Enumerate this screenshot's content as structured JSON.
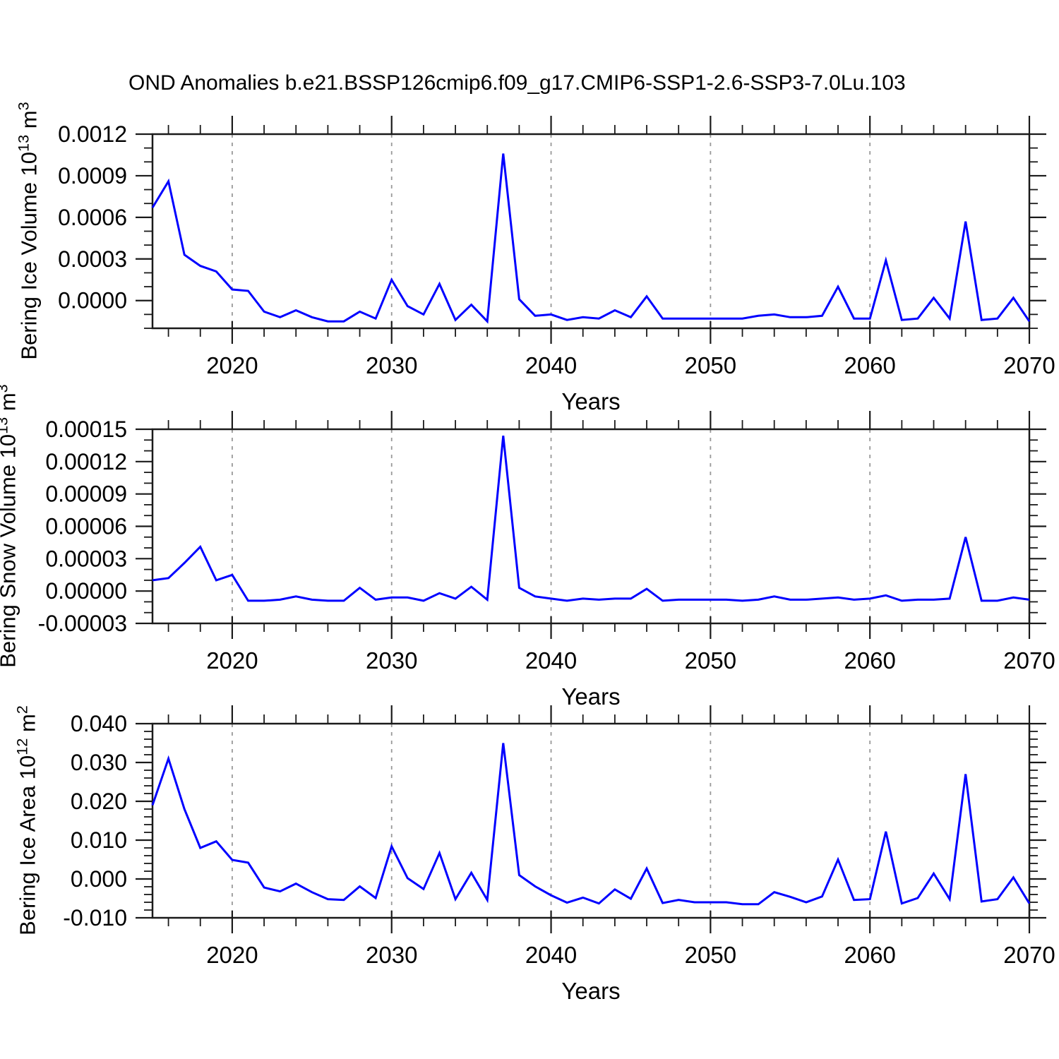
{
  "title": "OND Anomalies b.e21.BSSP126cmip6.f09_g17.CMIP6-SSP1-2.6-SSP3-7.0Lu.103",
  "xlabel": "Years",
  "accent_color": "#0000ff",
  "grid_color": "#999999",
  "axis_color": "#1a1a1a",
  "chart_data": [
    {
      "type": "line",
      "name": "bering-ice-volume",
      "ylabel": {
        "text": "Bering Ice Volume 10",
        "exp": "13",
        "unit": "m",
        "unit_exp": "3",
        "clipped": false
      },
      "xlabel": "Years",
      "xlim": [
        2015,
        2070
      ],
      "xtick_values": [
        2020,
        2030,
        2040,
        2050,
        2060,
        2070
      ],
      "xtick_labels": [
        "2020",
        "2030",
        "2040",
        "2050",
        "2060",
        "2070"
      ],
      "xminor_step": 2,
      "ylim": [
        -0.0002,
        0.0012
      ],
      "ytick_values": [
        0.0012,
        0.0009,
        0.0006,
        0.0003,
        0.0
      ],
      "ytick_labels": [
        "0.0012",
        "0.0009",
        "0.0006",
        "0.0003",
        "0.0000"
      ],
      "yminor_step": 0.0001,
      "grid": true,
      "x": [
        2015,
        2016,
        2017,
        2018,
        2019,
        2020,
        2021,
        2022,
        2023,
        2024,
        2025,
        2026,
        2027,
        2028,
        2029,
        2030,
        2031,
        2032,
        2033,
        2034,
        2035,
        2036,
        2037,
        2038,
        2039,
        2040,
        2041,
        2042,
        2043,
        2044,
        2045,
        2046,
        2047,
        2048,
        2049,
        2050,
        2051,
        2052,
        2053,
        2054,
        2055,
        2056,
        2057,
        2058,
        2059,
        2060,
        2061,
        2062,
        2063,
        2064,
        2065,
        2066,
        2067,
        2068,
        2069,
        2070
      ],
      "values": [
        0.00067,
        0.00086,
        0.00033,
        0.00025,
        0.00021,
        8e-05,
        7e-05,
        -8e-05,
        -0.00012,
        -7e-05,
        -0.00012,
        -0.00015,
        -0.00015,
        -8e-05,
        -0.00013,
        0.00015,
        -4e-05,
        -0.0001,
        0.00012,
        -0.00014,
        -3e-05,
        -0.00015,
        0.00106,
        1e-05,
        -0.00011,
        -0.0001,
        -0.00014,
        -0.00012,
        -0.00013,
        -7e-05,
        -0.00012,
        3e-05,
        -0.00013,
        -0.00013,
        -0.00013,
        -0.00013,
        -0.00013,
        -0.00013,
        -0.00011,
        -0.0001,
        -0.00012,
        -0.00012,
        -0.00011,
        0.0001,
        -0.00013,
        -0.00013,
        0.00029,
        -0.00014,
        -0.00013,
        2e-05,
        -0.00013,
        0.00057,
        -0.00014,
        -0.00013,
        2e-05,
        -0.00015
      ]
    },
    {
      "type": "line",
      "name": "bering-snow-volume",
      "ylabel": {
        "text": "Bering Snow Volume 10",
        "exp": "13",
        "unit": "m",
        "unit_exp": "3",
        "clipped": true
      },
      "xlabel": "Years",
      "xlim": [
        2015,
        2070
      ],
      "xtick_values": [
        2020,
        2030,
        2040,
        2050,
        2060,
        2070
      ],
      "xtick_labels": [
        "2020",
        "2030",
        "2040",
        "2050",
        "2060",
        "2070"
      ],
      "xminor_step": 2,
      "ylim": [
        -3e-05,
        0.00015
      ],
      "ytick_values": [
        0.00015,
        0.00012,
        9e-05,
        6e-05,
        3e-05,
        0.0,
        -3e-05
      ],
      "ytick_labels": [
        "0.00015",
        "0.00012",
        "0.00009",
        "0.00006",
        "0.00003",
        "0.00000",
        "-0.00003"
      ],
      "yminor_step": 1e-05,
      "grid": true,
      "x": [
        2015,
        2016,
        2017,
        2018,
        2019,
        2020,
        2021,
        2022,
        2023,
        2024,
        2025,
        2026,
        2027,
        2028,
        2029,
        2030,
        2031,
        2032,
        2033,
        2034,
        2035,
        2036,
        2037,
        2038,
        2039,
        2040,
        2041,
        2042,
        2043,
        2044,
        2045,
        2046,
        2047,
        2048,
        2049,
        2050,
        2051,
        2052,
        2053,
        2054,
        2055,
        2056,
        2057,
        2058,
        2059,
        2060,
        2061,
        2062,
        2063,
        2064,
        2065,
        2066,
        2067,
        2068,
        2069,
        2070
      ],
      "values": [
        1e-05,
        1.2e-05,
        2.6e-05,
        4.1e-05,
        1e-05,
        1.5e-05,
        -9e-06,
        -9e-06,
        -8e-06,
        -5e-06,
        -8e-06,
        -9e-06,
        -9e-06,
        3e-06,
        -8e-06,
        -6e-06,
        -6e-06,
        -9e-06,
        -2e-06,
        -7e-06,
        4e-06,
        -8e-06,
        0.000144,
        3e-06,
        -5e-06,
        -7e-06,
        -9e-06,
        -7e-06,
        -8e-06,
        -7e-06,
        -7e-06,
        2e-06,
        -9e-06,
        -8e-06,
        -8e-06,
        -8e-06,
        -8e-06,
        -9e-06,
        -8e-06,
        -5e-06,
        -8e-06,
        -8e-06,
        -7e-06,
        -6e-06,
        -8e-06,
        -7e-06,
        -4e-06,
        -9e-06,
        -8e-06,
        -8e-06,
        -7e-06,
        5e-05,
        -9e-06,
        -9e-06,
        -6e-06,
        -8e-06
      ]
    },
    {
      "type": "line",
      "name": "bering-ice-area",
      "ylabel": {
        "text": "Bering Ice Area 10",
        "exp": "12",
        "unit": "m",
        "unit_exp": "2",
        "clipped": false
      },
      "xlabel": "Years",
      "xlim": [
        2015,
        2070
      ],
      "xtick_values": [
        2020,
        2030,
        2040,
        2050,
        2060,
        2070
      ],
      "xtick_labels": [
        "2020",
        "2030",
        "2040",
        "2050",
        "2060",
        "2070"
      ],
      "xminor_step": 2,
      "ylim": [
        -0.01,
        0.04
      ],
      "ytick_values": [
        0.04,
        0.03,
        0.02,
        0.01,
        0.0,
        -0.01
      ],
      "ytick_labels": [
        "0.040",
        "0.030",
        "0.020",
        "0.010",
        "0.000",
        "-0.010"
      ],
      "yminor_step": 0.002,
      "grid": true,
      "x": [
        2015,
        2016,
        2017,
        2018,
        2019,
        2020,
        2021,
        2022,
        2023,
        2024,
        2025,
        2026,
        2027,
        2028,
        2029,
        2030,
        2031,
        2032,
        2033,
        2034,
        2035,
        2036,
        2037,
        2038,
        2039,
        2040,
        2041,
        2042,
        2043,
        2044,
        2045,
        2046,
        2047,
        2048,
        2049,
        2050,
        2051,
        2052,
        2053,
        2054,
        2055,
        2056,
        2057,
        2058,
        2059,
        2060,
        2061,
        2062,
        2063,
        2064,
        2065,
        2066,
        2067,
        2068,
        2069,
        2070
      ],
      "values": [
        0.019,
        0.031,
        0.018,
        0.008,
        0.0097,
        0.0049,
        0.0042,
        -0.0022,
        -0.0032,
        -0.0012,
        -0.0034,
        -0.0052,
        -0.0054,
        -0.0019,
        -0.0049,
        0.0084,
        0.0002,
        -0.0026,
        0.0067,
        -0.0052,
        0.0016,
        -0.0054,
        0.035,
        0.001,
        -0.0019,
        -0.0042,
        -0.0061,
        -0.0048,
        -0.0063,
        -0.0027,
        -0.0051,
        0.0027,
        -0.0062,
        -0.0054,
        -0.006,
        -0.006,
        -0.006,
        -0.0065,
        -0.0065,
        -0.0034,
        -0.0046,
        -0.006,
        -0.0045,
        0.005,
        -0.0054,
        -0.0052,
        0.0122,
        -0.0063,
        -0.0049,
        0.0014,
        -0.0052,
        0.027,
        -0.0058,
        -0.0052,
        0.0004,
        -0.0063
      ]
    }
  ]
}
